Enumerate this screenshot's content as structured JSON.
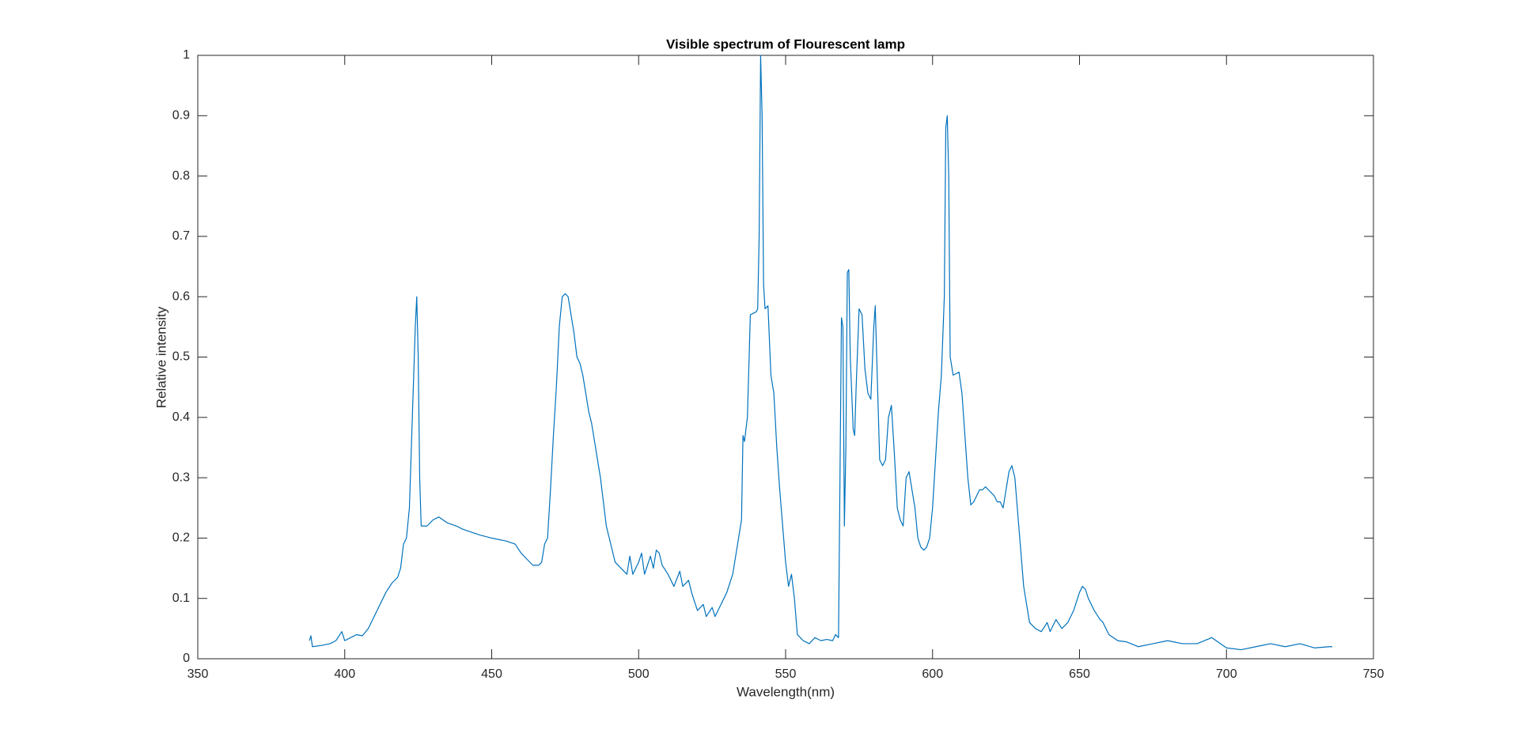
{
  "chart_data": {
    "type": "line",
    "title": "Visible spectrum of Flourescent lamp",
    "x_label": "Wavelength(nm)",
    "y_label": "Relative intensity",
    "xlim": [
      350,
      750
    ],
    "xticks": [
      350,
      400,
      450,
      500,
      550,
      600,
      650,
      700,
      750
    ],
    "ylim": [
      0,
      1
    ],
    "yticks": [
      0,
      0.1,
      0.2,
      0.3,
      0.4,
      0.5,
      0.6,
      0.7,
      0.8,
      0.9,
      1
    ],
    "grid": false,
    "x": [
      388,
      388.5,
      389,
      392,
      395,
      397,
      399,
      400,
      402,
      404,
      406,
      408,
      410,
      412,
      414,
      416,
      418,
      419,
      420,
      421,
      422,
      423,
      424,
      424.5,
      425,
      425.5,
      426,
      428,
      430,
      432,
      435,
      438,
      440,
      443,
      446,
      450,
      455,
      458,
      460,
      462,
      464,
      466,
      467,
      468,
      469,
      470,
      471,
      472,
      473,
      474,
      475,
      476,
      477,
      478,
      479,
      480,
      481,
      482,
      483,
      484,
      485,
      486,
      487,
      488,
      489,
      490,
      492,
      494,
      496,
      497,
      498,
      500,
      501,
      502,
      504,
      505,
      506,
      507,
      508,
      510,
      512,
      514,
      515,
      517,
      518,
      519,
      520,
      522,
      523,
      525,
      526,
      528,
      530,
      532,
      533,
      534,
      535,
      535.5,
      536,
      537,
      538,
      540,
      540.5,
      541,
      541.5,
      542,
      542.5,
      543,
      544,
      545,
      546,
      547,
      548,
      549,
      550,
      551,
      552,
      553,
      554,
      556,
      558,
      560,
      562,
      564,
      566,
      567,
      568,
      568.5,
      569,
      569.5,
      570,
      570.5,
      571,
      571.5,
      572,
      573,
      573.5,
      574,
      575,
      576,
      577,
      578,
      579,
      580,
      580.5,
      581,
      582,
      583,
      584,
      585,
      586,
      587,
      588,
      589,
      590,
      591,
      592,
      593,
      594,
      595,
      596,
      597,
      598,
      599,
      600,
      601,
      602,
      603,
      604,
      604.5,
      605,
      605.5,
      606,
      607,
      609,
      610,
      611,
      612,
      613,
      614,
      615,
      616,
      617,
      618,
      619,
      620,
      621,
      622,
      623,
      624,
      625,
      626,
      627,
      628,
      629,
      630,
      631,
      632,
      633,
      635,
      637,
      639,
      640,
      642,
      644,
      646,
      648,
      650,
      651,
      652,
      653,
      655,
      657,
      658,
      660,
      663,
      666,
      670,
      675,
      680,
      685,
      690,
      695,
      700,
      705,
      710,
      715,
      720,
      725,
      730,
      735,
      736
    ],
    "series": [
      {
        "color": "#0072bd",
        "values": [
          0.03,
          0.038,
          0.02,
          0.022,
          0.025,
          0.03,
          0.045,
          0.03,
          0.035,
          0.04,
          0.038,
          0.05,
          0.07,
          0.09,
          0.11,
          0.125,
          0.135,
          0.15,
          0.19,
          0.2,
          0.25,
          0.4,
          0.55,
          0.6,
          0.5,
          0.3,
          0.22,
          0.22,
          0.23,
          0.235,
          0.225,
          0.22,
          0.215,
          0.21,
          0.205,
          0.2,
          0.195,
          0.19,
          0.175,
          0.165,
          0.155,
          0.155,
          0.16,
          0.19,
          0.2,
          0.28,
          0.37,
          0.45,
          0.55,
          0.6,
          0.605,
          0.6,
          0.57,
          0.54,
          0.5,
          0.49,
          0.47,
          0.44,
          0.41,
          0.39,
          0.36,
          0.33,
          0.3,
          0.26,
          0.22,
          0.2,
          0.16,
          0.15,
          0.14,
          0.17,
          0.14,
          0.16,
          0.175,
          0.14,
          0.17,
          0.15,
          0.18,
          0.175,
          0.155,
          0.14,
          0.12,
          0.145,
          0.12,
          0.13,
          0.11,
          0.095,
          0.08,
          0.09,
          0.07,
          0.085,
          0.07,
          0.09,
          0.11,
          0.14,
          0.17,
          0.2,
          0.23,
          0.37,
          0.36,
          0.4,
          0.57,
          0.575,
          0.58,
          0.7,
          1.0,
          0.9,
          0.62,
          0.58,
          0.585,
          0.47,
          0.44,
          0.35,
          0.28,
          0.22,
          0.16,
          0.12,
          0.14,
          0.1,
          0.04,
          0.03,
          0.025,
          0.035,
          0.03,
          0.032,
          0.03,
          0.04,
          0.035,
          0.3,
          0.565,
          0.55,
          0.22,
          0.35,
          0.64,
          0.645,
          0.5,
          0.38,
          0.37,
          0.45,
          0.58,
          0.57,
          0.48,
          0.44,
          0.43,
          0.55,
          0.585,
          0.5,
          0.33,
          0.32,
          0.33,
          0.4,
          0.42,
          0.34,
          0.25,
          0.23,
          0.22,
          0.3,
          0.31,
          0.28,
          0.25,
          0.2,
          0.185,
          0.18,
          0.185,
          0.2,
          0.25,
          0.33,
          0.41,
          0.47,
          0.6,
          0.88,
          0.9,
          0.8,
          0.5,
          0.47,
          0.475,
          0.44,
          0.37,
          0.3,
          0.255,
          0.26,
          0.27,
          0.28,
          0.28,
          0.285,
          0.28,
          0.275,
          0.27,
          0.26,
          0.26,
          0.25,
          0.28,
          0.31,
          0.32,
          0.3,
          0.24,
          0.18,
          0.12,
          0.09,
          0.06,
          0.05,
          0.045,
          0.06,
          0.045,
          0.065,
          0.05,
          0.06,
          0.08,
          0.11,
          0.12,
          0.115,
          0.1,
          0.08,
          0.065,
          0.06,
          0.04,
          0.03,
          0.028,
          0.02,
          0.025,
          0.03,
          0.025,
          0.025,
          0.035,
          0.018,
          0.015,
          0.02,
          0.025,
          0.02,
          0.025,
          0.018,
          0.02,
          0.02
        ]
      }
    ]
  }
}
